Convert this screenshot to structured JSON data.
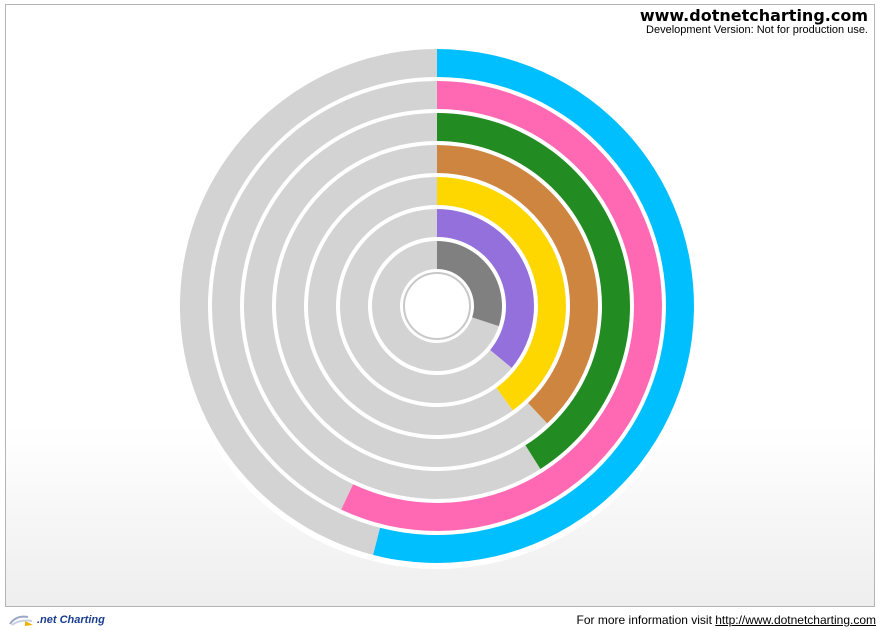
{
  "header": {
    "site": "www.dotnetcharting.com",
    "subtitle": "Development Version: Not for production use."
  },
  "footer": {
    "logo_text": ".net Charting",
    "info_prefix": "For more information visit ",
    "link": "http://www.dotnetcharting.com"
  },
  "chart_data": {
    "type": "radial-bar",
    "title": "",
    "track_color": "#d3d3d3",
    "max_value": 100,
    "series": [
      {
        "value": 30,
        "color": "#808080"
      },
      {
        "value": 36,
        "color": "#9370db"
      },
      {
        "value": 40,
        "color": "#ffd700"
      },
      {
        "value": 38,
        "color": "#cd853f"
      },
      {
        "value": 41,
        "color": "#228b22"
      },
      {
        "value": 57,
        "color": "#ff69b4"
      },
      {
        "value": 54,
        "color": "#00bfff"
      }
    ]
  }
}
